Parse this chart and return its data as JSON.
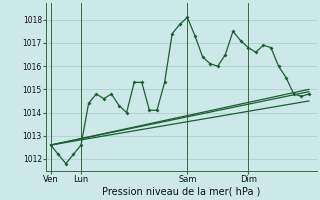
{
  "title": "Pression niveau de la mer( hPa )",
  "bg_color": "#cce8e8",
  "grid_color": "#aacccc",
  "line_color": "#1a6030",
  "ylim": [
    1011.5,
    1018.7
  ],
  "yticks": [
    1012,
    1013,
    1014,
    1015,
    1016,
    1017,
    1018
  ],
  "day_labels": [
    "Ven",
    "Lun",
    "Sam",
    "Dim"
  ],
  "day_positions": [
    0,
    2,
    9,
    13
  ],
  "xlim": [
    -0.3,
    17.5
  ],
  "line1_x": [
    0.0,
    0.5,
    1.0,
    1.5,
    2.0,
    2.5,
    3.0,
    3.5,
    4.0,
    4.5,
    5.0,
    5.5,
    6.0,
    6.5,
    7.0,
    7.5,
    8.0,
    8.5,
    9.0,
    9.5,
    10.0,
    10.5,
    11.0,
    11.5,
    12.0,
    12.5,
    13.0,
    13.5,
    14.0,
    14.5,
    15.0,
    15.5,
    16.0,
    16.5,
    17.0
  ],
  "line1_y": [
    1012.6,
    1012.2,
    1011.8,
    1012.2,
    1012.6,
    1014.4,
    1014.8,
    1014.6,
    1014.8,
    1014.3,
    1014.0,
    1015.3,
    1015.3,
    1014.1,
    1014.1,
    1015.3,
    1017.4,
    1017.8,
    1018.1,
    1017.3,
    1016.4,
    1016.1,
    1016.0,
    1016.5,
    1017.5,
    1017.1,
    1016.8,
    1016.6,
    1016.9,
    1016.8,
    1016.0,
    1015.5,
    1014.8,
    1014.7,
    1014.8
  ],
  "line2_x": [
    0,
    17
  ],
  "line2_y": [
    1012.6,
    1015.0
  ],
  "line3_x": [
    0,
    17
  ],
  "line3_y": [
    1012.6,
    1014.5
  ],
  "line4_x": [
    0,
    17
  ],
  "line4_y": [
    1012.6,
    1014.9
  ],
  "vline_positions": [
    0,
    2,
    9,
    13
  ],
  "marker_x": [
    0.0,
    0.5,
    1.0,
    1.5,
    2.0,
    2.5,
    3.0,
    3.5,
    4.0,
    4.5,
    5.0,
    5.5,
    6.0,
    6.5,
    7.0,
    7.5,
    8.0,
    8.5,
    9.0,
    9.5,
    10.0,
    10.5,
    11.0,
    11.5,
    12.0,
    12.5,
    13.0,
    13.5,
    14.0,
    14.5,
    15.0,
    15.5,
    16.0,
    16.5,
    17.0
  ],
  "marker_y": [
    1012.6,
    1012.2,
    1011.8,
    1012.2,
    1012.6,
    1014.4,
    1014.8,
    1014.6,
    1014.8,
    1014.3,
    1014.0,
    1015.3,
    1015.3,
    1014.1,
    1014.1,
    1015.3,
    1017.4,
    1017.8,
    1018.1,
    1017.3,
    1016.4,
    1016.1,
    1016.0,
    1016.5,
    1017.5,
    1017.1,
    1016.8,
    1016.6,
    1016.9,
    1016.8,
    1016.0,
    1015.5,
    1014.8,
    1014.7,
    1014.8
  ]
}
